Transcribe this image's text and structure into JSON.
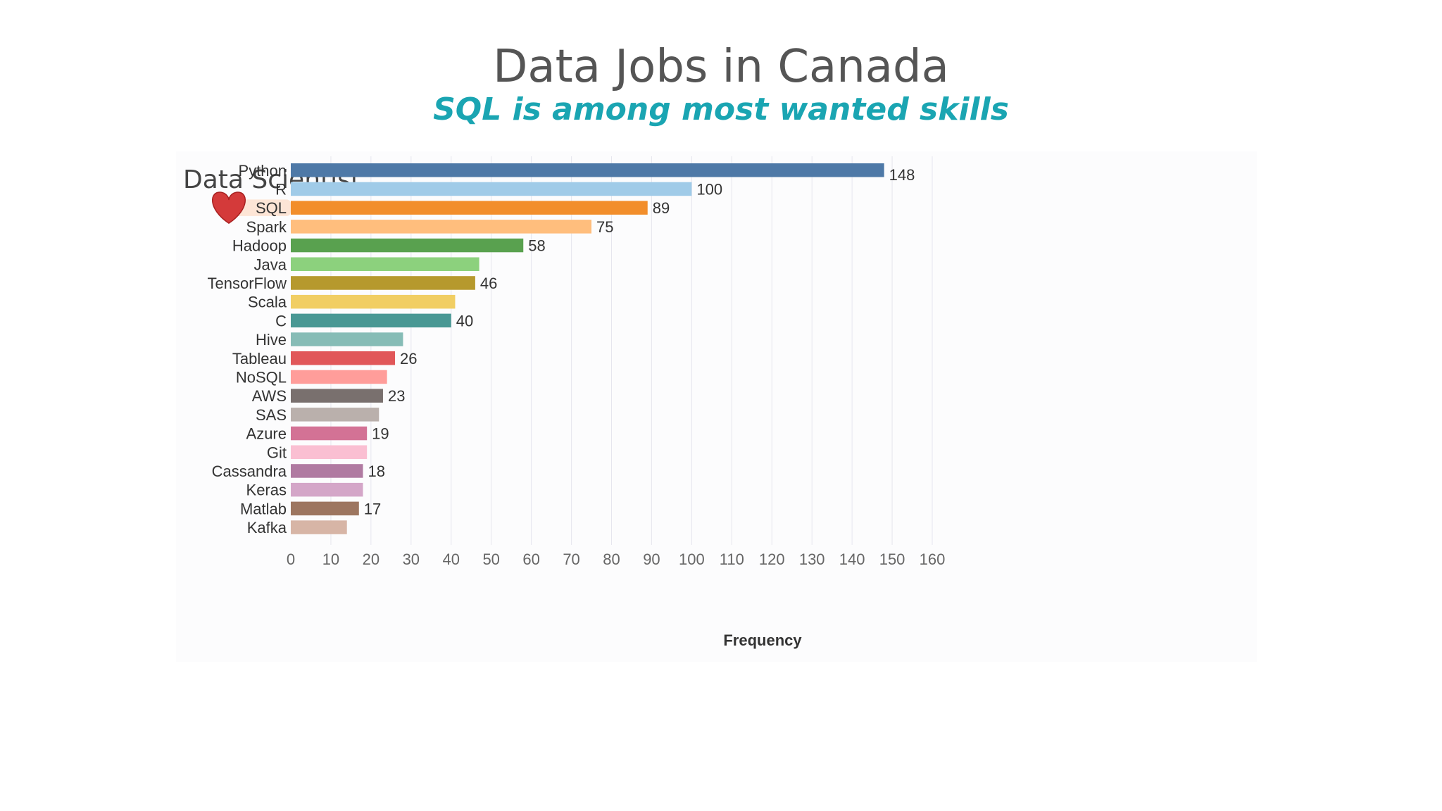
{
  "slide": {
    "title": "Data Jobs in Canada",
    "subtitle": "SQL is among most wanted skills",
    "subtitle_color": "#1aa5b2"
  },
  "highlight": {
    "icon": "heart-icon",
    "category": "SQL",
    "color": "#d43a3a"
  },
  "chart_data": {
    "type": "bar",
    "orientation": "horizontal",
    "title": "Data Scientist",
    "xlabel": "Frequency",
    "ylabel": "",
    "xlim": [
      0,
      160
    ],
    "xticks": [
      0,
      10,
      20,
      30,
      40,
      50,
      60,
      70,
      80,
      90,
      100,
      110,
      120,
      130,
      140,
      150,
      160
    ],
    "grid": "vertical",
    "categories": [
      "Python",
      "R",
      "SQL",
      "Spark",
      "Hadoop",
      "Java",
      "TensorFlow",
      "Scala",
      "C",
      "Hive",
      "Tableau",
      "NoSQL",
      "AWS",
      "SAS",
      "Azure",
      "Git",
      "Cassandra",
      "Keras",
      "Matlab",
      "Kafka"
    ],
    "values": [
      148,
      100,
      89,
      75,
      58,
      47,
      46,
      41,
      40,
      28,
      26,
      24,
      23,
      22,
      19,
      19,
      18,
      18,
      17,
      14
    ],
    "data_labels": [
      "148",
      "100",
      "89",
      "75",
      "58",
      "",
      "46",
      "",
      "40",
      "",
      "26",
      "",
      "23",
      "",
      "19",
      "",
      "18",
      "",
      "17",
      ""
    ],
    "colors": [
      "#4e79a7",
      "#a0cbe8",
      "#f28e2b",
      "#ffbe7d",
      "#59a14f",
      "#8cd17d",
      "#b6992d",
      "#f1ce63",
      "#499894",
      "#86bcb6",
      "#e15759",
      "#ff9d9a",
      "#79706e",
      "#bab0ac",
      "#d37295",
      "#fabfd2",
      "#b07aa1",
      "#d4a6c8",
      "#9d7660",
      "#d7b5a6"
    ]
  }
}
